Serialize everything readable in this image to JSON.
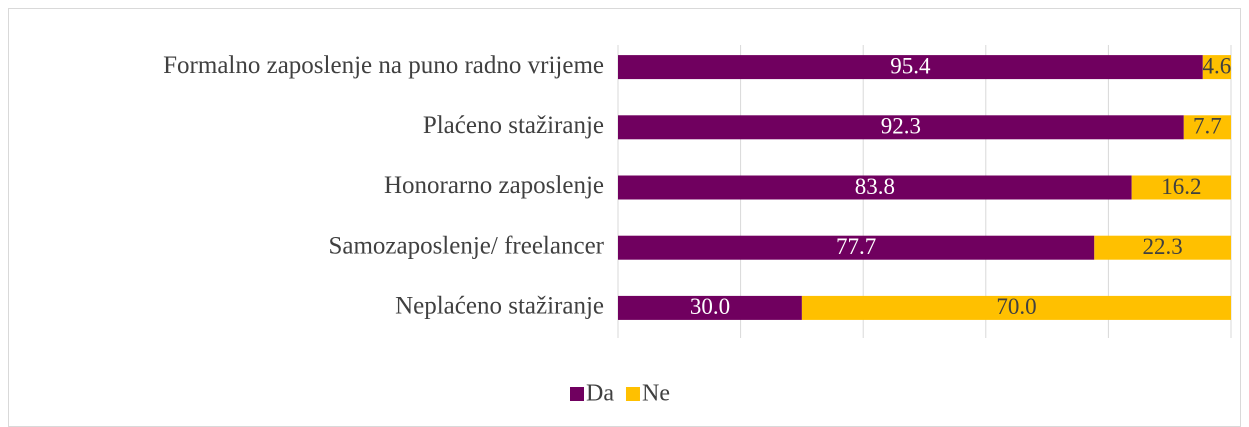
{
  "chart_data": {
    "type": "stacked_barh",
    "categories": [
      "Formalno zaposlenje na puno radno vrijeme",
      "Plaćeno stažiranje",
      "Honorarno zaposlenje",
      "Samozaposlenje/ freelancer",
      "Neplaćeno stažiranje"
    ],
    "series": [
      {
        "name": "Da",
        "color": "#70005f",
        "values": [
          95.4,
          92.3,
          83.8,
          77.7,
          30.0
        ],
        "value_labels": [
          "95.4",
          "92.3",
          "83.8",
          "77.7",
          "30.0"
        ]
      },
      {
        "name": "Ne",
        "color": "#ffc000",
        "values": [
          4.6,
          7.7,
          16.2,
          22.3,
          70.0
        ],
        "value_labels": [
          "4.6",
          "7.7",
          "16.2",
          "22.3",
          "70.0"
        ]
      }
    ],
    "xlim": [
      0,
      100
    ],
    "xticks": [
      0,
      20,
      40,
      60,
      80,
      100
    ],
    "grid": true,
    "legend": "bottom"
  }
}
